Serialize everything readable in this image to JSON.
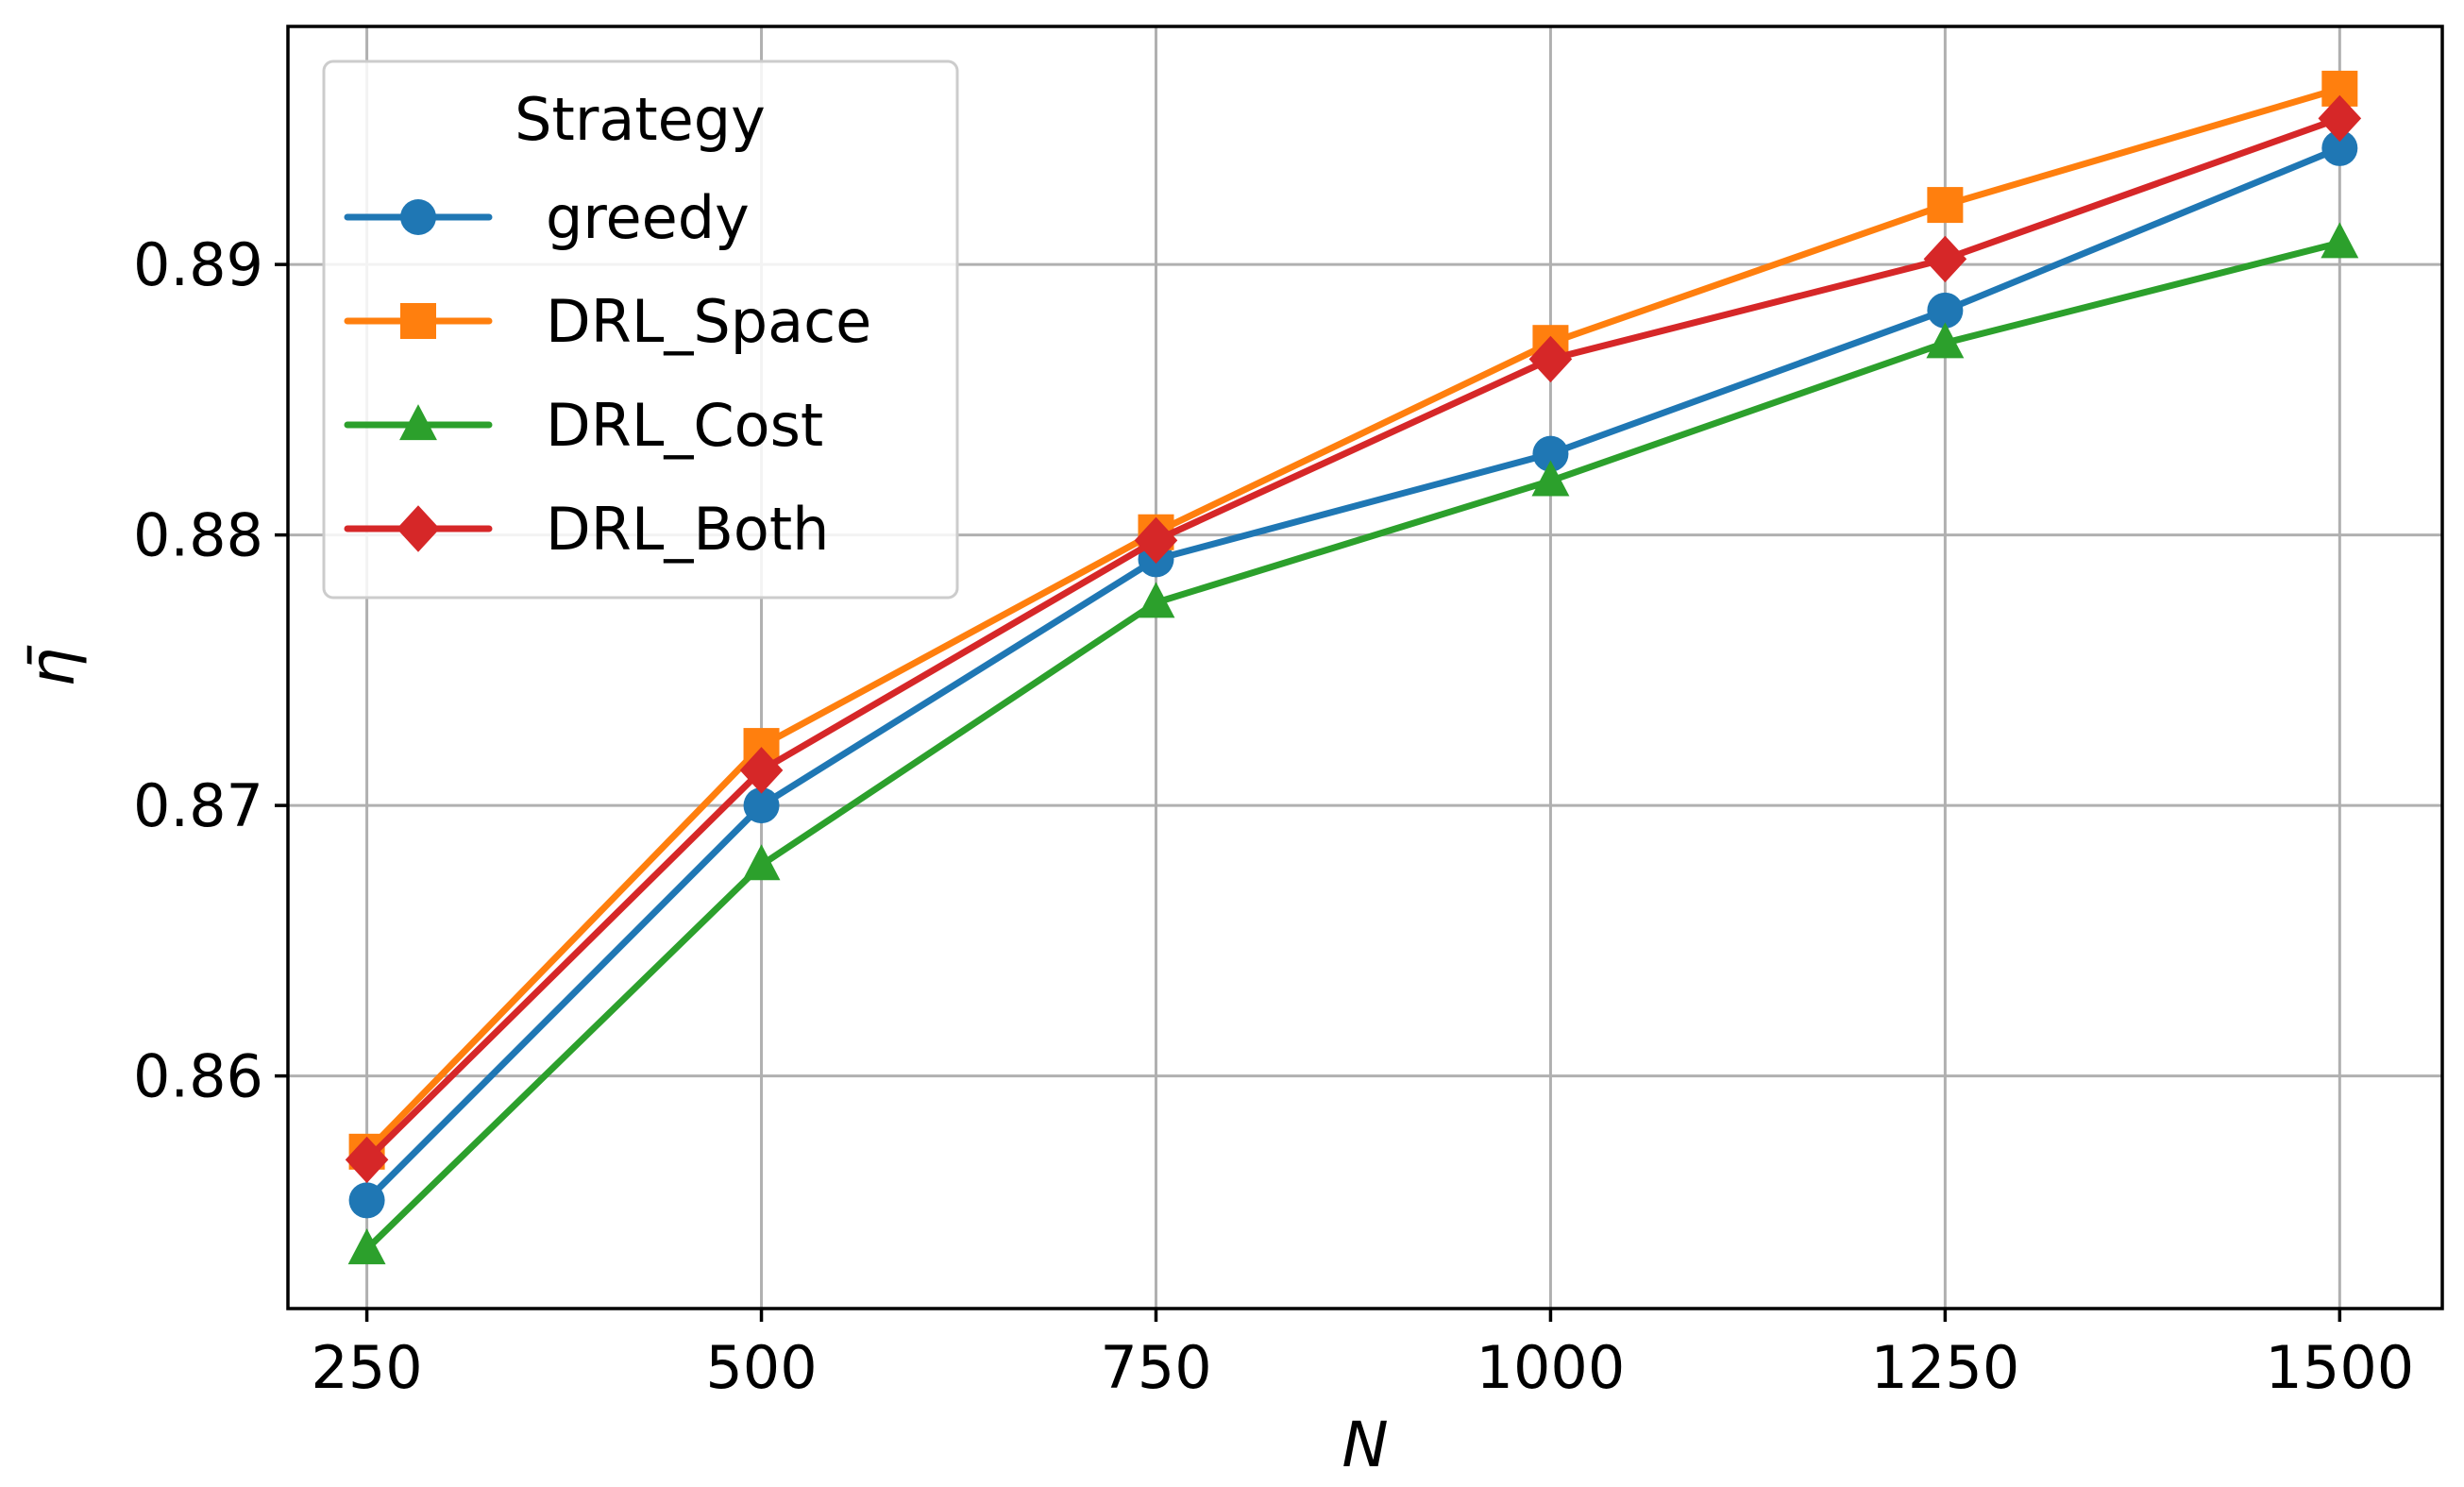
{
  "chart_data": {
    "type": "line",
    "title": "",
    "xlabel": "N",
    "ylabel": "η̄",
    "x": [
      250,
      500,
      750,
      1000,
      1250,
      1500
    ],
    "x_ticks": [
      "250",
      "500",
      "750",
      "1000",
      "1250",
      "1500"
    ],
    "y_ticks": [
      "0.86",
      "0.87",
      "0.88",
      "0.89"
    ],
    "y_tick_values": [
      0.86,
      0.87,
      0.88,
      0.89
    ],
    "xlim": [
      200,
      1565
    ],
    "ylim": [
      0.8514,
      0.8988
    ],
    "grid": true,
    "legend": {
      "title": "Strategy",
      "placement": "upper-left"
    },
    "series": [
      {
        "name": "greedy",
        "color": "#1f77b4",
        "marker": "circle",
        "values": [
          0.8554,
          0.87,
          0.8791,
          0.883,
          0.8883,
          0.8943
        ]
      },
      {
        "name": "DRL_Space",
        "color": "#ff7f0e",
        "marker": "square",
        "values": [
          0.8572,
          0.8722,
          0.8801,
          0.8871,
          0.8922,
          0.8965
        ]
      },
      {
        "name": "DRL_Cost",
        "color": "#2ca02c",
        "marker": "triangle",
        "values": [
          0.8536,
          0.8678,
          0.8775,
          0.882,
          0.8871,
          0.8908
        ]
      },
      {
        "name": "DRL_Both",
        "color": "#d62728",
        "marker": "diamond",
        "values": [
          0.8569,
          0.8713,
          0.8798,
          0.8865,
          0.8902,
          0.8954
        ]
      }
    ]
  }
}
